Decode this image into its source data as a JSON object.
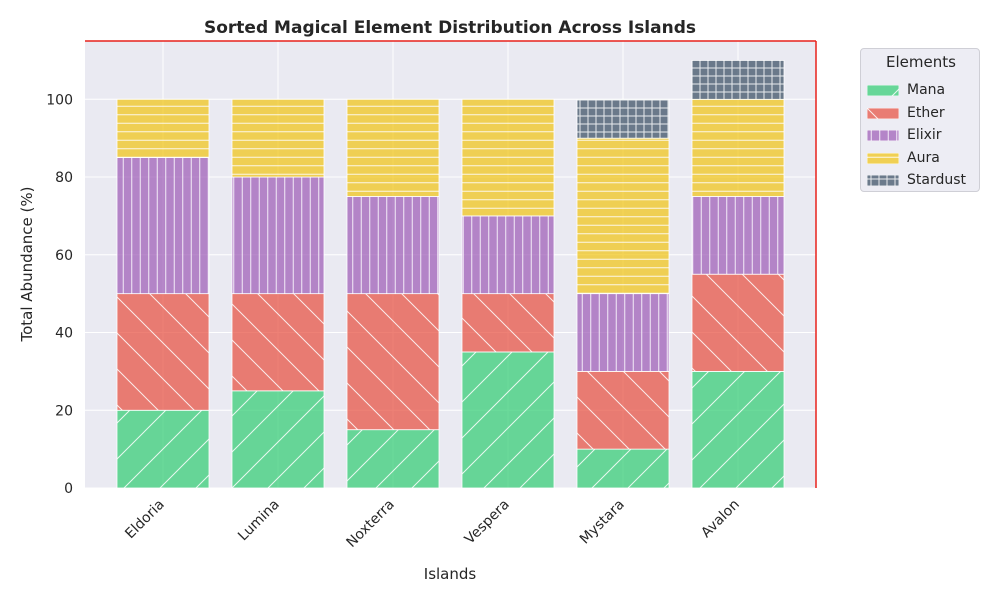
{
  "chart_data": {
    "type": "bar",
    "stacked": true,
    "title": "Sorted Magical Element Distribution Across Islands",
    "xlabel": "Islands",
    "ylabel": "Total Abundance (%)",
    "categories": [
      "Eldoria",
      "Lumina",
      "Noxterra",
      "Vespera",
      "Mystara",
      "Avalon"
    ],
    "ylim": [
      0,
      115
    ],
    "yticks": [
      0,
      20,
      40,
      60,
      80,
      100
    ],
    "grid": true,
    "legend_title": "Elements",
    "legend_position": "outside top-right",
    "series": [
      {
        "name": "Mana",
        "color": "#2ecc71",
        "hatch": "/",
        "values": [
          20,
          25,
          15,
          35,
          10,
          30
        ]
      },
      {
        "name": "Ether",
        "color": "#e74c3c",
        "hatch": "\\",
        "values": [
          30,
          25,
          35,
          15,
          20,
          25
        ]
      },
      {
        "name": "Elixir",
        "color": "#9b59b6",
        "hatch": "|",
        "values": [
          35,
          30,
          25,
          20,
          20,
          20
        ]
      },
      {
        "name": "Aura",
        "color": "#f1c40f",
        "hatch": "-",
        "values": [
          15,
          20,
          25,
          30,
          40,
          25
        ]
      },
      {
        "name": "Stardust",
        "color": "#34495e",
        "hatch": "+",
        "values": [
          0,
          0,
          0,
          0,
          10,
          10
        ]
      }
    ]
  }
}
